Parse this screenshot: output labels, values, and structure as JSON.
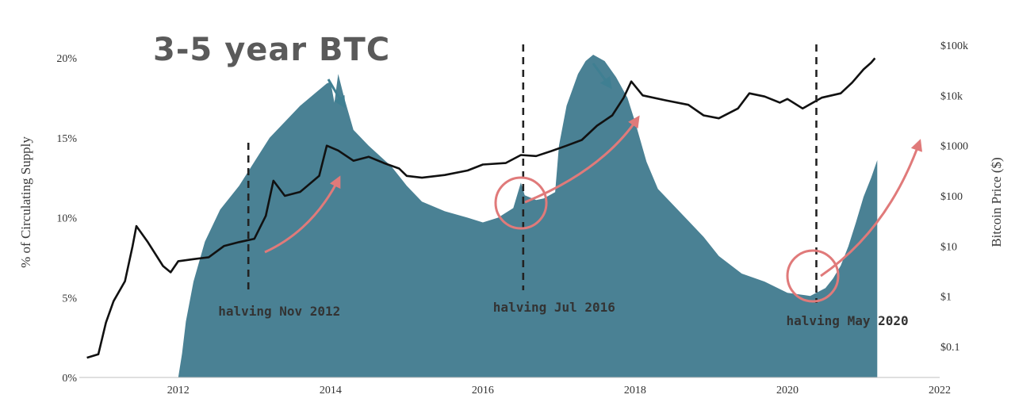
{
  "chart_data": {
    "type": "area",
    "title": "3-5 year BTC",
    "ylabel_left": "% of Circulating Supply",
    "ylabel_right": "Bitcoin Price ($)",
    "x_ticks": [
      "2012",
      "2014",
      "2016",
      "2018",
      "2020",
      "2022"
    ],
    "y_left_ticks": [
      "0%",
      "5%",
      "10%",
      "15%",
      "20%"
    ],
    "y_right_ticks": [
      "$0.1",
      "$1",
      "$10",
      "$100",
      "$1000",
      "$10k",
      "$100k"
    ],
    "y_left_range": [
      0,
      20
    ],
    "y_right_scale": "log",
    "y_right_range": [
      0.02,
      100000
    ],
    "x_range": [
      2010.7,
      2022
    ],
    "colors": {
      "area": "#4a8194",
      "price": "#111111",
      "arrow_red": "#e07a7a",
      "arrow_teal": "#3f7f92",
      "dashed": "#222222"
    },
    "series": [
      {
        "name": "",
        "kind": "area",
        "points": [
          [
            2012.0,
            0.0
          ],
          [
            2012.05,
            1.5
          ],
          [
            2012.1,
            3.5
          ],
          [
            2012.2,
            6.0
          ],
          [
            2012.35,
            8.5
          ],
          [
            2012.55,
            10.5
          ],
          [
            2012.8,
            12.0
          ],
          [
            2013.0,
            13.5
          ],
          [
            2013.2,
            15.0
          ],
          [
            2013.4,
            16.0
          ],
          [
            2013.6,
            17.0
          ],
          [
            2013.8,
            17.8
          ],
          [
            2013.95,
            18.4
          ],
          [
            2014.0,
            18.5
          ],
          [
            2014.05,
            17.2
          ],
          [
            2014.1,
            19.0
          ],
          [
            2014.18,
            17.5
          ],
          [
            2014.3,
            15.5
          ],
          [
            2014.5,
            14.5
          ],
          [
            2014.8,
            13.2
          ],
          [
            2015.0,
            12.0
          ],
          [
            2015.2,
            11.0
          ],
          [
            2015.5,
            10.4
          ],
          [
            2015.8,
            10.0
          ],
          [
            2016.0,
            9.7
          ],
          [
            2016.2,
            10.0
          ],
          [
            2016.4,
            10.6
          ],
          [
            2016.5,
            12.2
          ],
          [
            2016.55,
            11.4
          ],
          [
            2016.7,
            11.1
          ],
          [
            2016.8,
            11.2
          ],
          [
            2016.95,
            11.6
          ],
          [
            2017.0,
            14.5
          ],
          [
            2017.1,
            17.0
          ],
          [
            2017.25,
            19.0
          ],
          [
            2017.35,
            19.8
          ],
          [
            2017.45,
            20.2
          ],
          [
            2017.6,
            19.8
          ],
          [
            2017.75,
            18.8
          ],
          [
            2017.9,
            17.5
          ],
          [
            2018.0,
            16.0
          ],
          [
            2018.15,
            13.5
          ],
          [
            2018.3,
            11.8
          ],
          [
            2018.5,
            10.8
          ],
          [
            2018.7,
            9.8
          ],
          [
            2018.9,
            8.8
          ],
          [
            2019.1,
            7.6
          ],
          [
            2019.4,
            6.5
          ],
          [
            2019.7,
            6.0
          ],
          [
            2020.0,
            5.3
          ],
          [
            2020.3,
            5.1
          ],
          [
            2020.5,
            5.6
          ],
          [
            2020.6,
            6.2
          ],
          [
            2020.7,
            7.0
          ],
          [
            2020.8,
            8.2
          ],
          [
            2020.9,
            9.7
          ],
          [
            2021.0,
            11.3
          ],
          [
            2021.1,
            12.5
          ],
          [
            2021.18,
            13.6
          ],
          [
            2021.18,
            0.0
          ]
        ]
      },
      {
        "name": "",
        "kind": "line",
        "axis": "right",
        "points": [
          [
            2010.8,
            0.06
          ],
          [
            2010.95,
            0.07
          ],
          [
            2011.05,
            0.3
          ],
          [
            2011.15,
            0.8
          ],
          [
            2011.3,
            2.0
          ],
          [
            2011.4,
            10.0
          ],
          [
            2011.45,
            25.0
          ],
          [
            2011.6,
            12.0
          ],
          [
            2011.8,
            4.0
          ],
          [
            2011.9,
            3.0
          ],
          [
            2012.0,
            5.0
          ],
          [
            2012.2,
            5.5
          ],
          [
            2012.4,
            6.0
          ],
          [
            2012.6,
            10.0
          ],
          [
            2012.8,
            12.0
          ],
          [
            2013.0,
            14.0
          ],
          [
            2013.15,
            40.0
          ],
          [
            2013.25,
            200.0
          ],
          [
            2013.4,
            100.0
          ],
          [
            2013.6,
            120.0
          ],
          [
            2013.85,
            250.0
          ],
          [
            2013.95,
            1000.0
          ],
          [
            2014.1,
            800.0
          ],
          [
            2014.3,
            500.0
          ],
          [
            2014.5,
            600.0
          ],
          [
            2014.7,
            450.0
          ],
          [
            2014.9,
            350.0
          ],
          [
            2015.0,
            250.0
          ],
          [
            2015.2,
            230.0
          ],
          [
            2015.5,
            260.0
          ],
          [
            2015.8,
            320.0
          ],
          [
            2016.0,
            420.0
          ],
          [
            2016.3,
            450.0
          ],
          [
            2016.5,
            650.0
          ],
          [
            2016.7,
            620.0
          ],
          [
            2016.9,
            780.0
          ],
          [
            2017.1,
            1000.0
          ],
          [
            2017.3,
            1300.0
          ],
          [
            2017.5,
            2500.0
          ],
          [
            2017.7,
            4000.0
          ],
          [
            2017.85,
            9000.0
          ],
          [
            2017.95,
            19000.0
          ],
          [
            2018.1,
            10000.0
          ],
          [
            2018.4,
            8000.0
          ],
          [
            2018.7,
            6500.0
          ],
          [
            2018.9,
            4000.0
          ],
          [
            2019.1,
            3500.0
          ],
          [
            2019.35,
            5500.0
          ],
          [
            2019.5,
            11000.0
          ],
          [
            2019.7,
            9500.0
          ],
          [
            2019.9,
            7200.0
          ],
          [
            2020.0,
            8500.0
          ],
          [
            2020.2,
            5500.0
          ],
          [
            2020.45,
            9000.0
          ],
          [
            2020.7,
            11000.0
          ],
          [
            2020.85,
            18000.0
          ],
          [
            2021.0,
            33000.0
          ],
          [
            2021.1,
            45000.0
          ],
          [
            2021.15,
            55000.0
          ]
        ]
      }
    ],
    "halvings": [
      {
        "x": 2012.92,
        "label": "halving Nov 2012"
      },
      {
        "x": 2016.53,
        "label": "halving Jul 2016"
      },
      {
        "x": 2020.38,
        "label": "halving May 2020"
      }
    ]
  }
}
